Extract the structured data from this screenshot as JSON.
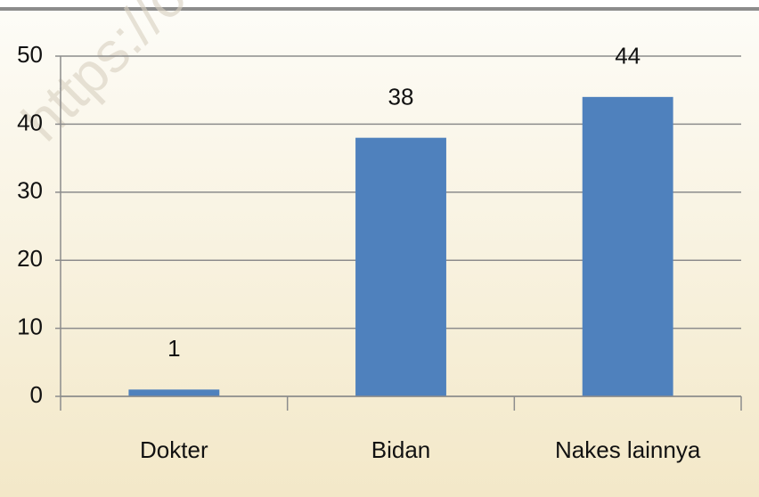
{
  "chart_data": {
    "type": "bar",
    "categories": [
      "Dokter",
      "Bidan",
      "Nakes lainnya"
    ],
    "values": [
      1,
      38,
      44
    ],
    "color": "#4f81bd",
    "ylim": [
      0,
      50
    ],
    "yticks": [
      0,
      10,
      20,
      30,
      40,
      50
    ],
    "grid": true,
    "watermark": "https://oku"
  }
}
